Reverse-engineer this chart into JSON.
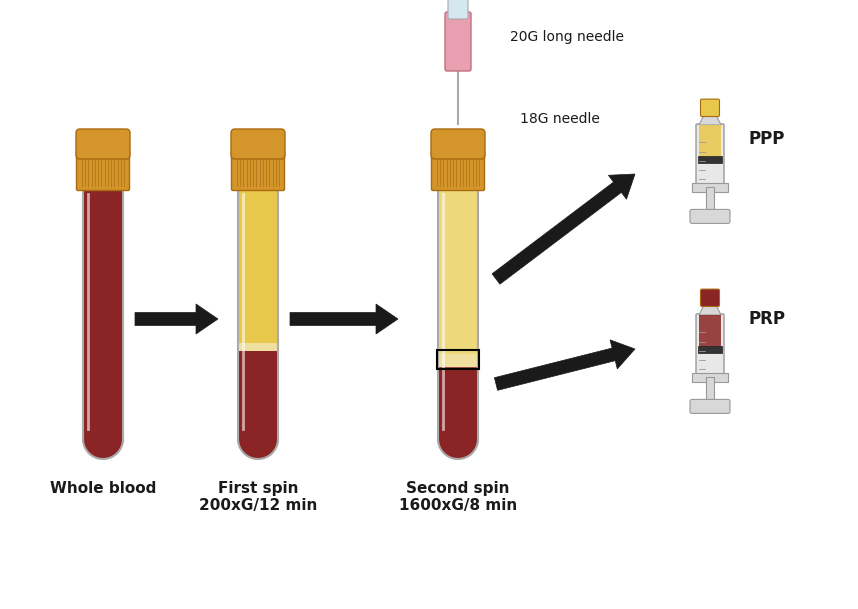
{
  "bg_color": "#ffffff",
  "tube1_label": "Whole blood",
  "tube2_label": "First spin\n200xG/12 min",
  "tube3_label": "Second spin\n1600xG/8 min",
  "ppp_label": "PPP",
  "prp_label": "PRP",
  "needle_label1": "20G long needle",
  "needle_label2": "18G needle",
  "blood_color": "#8B2525",
  "yellow_color": "#E8C84A",
  "yellow_light": "#EDD87A",
  "buffy_color": "#F0E0A0",
  "cap_color": "#D4952A",
  "cap_dark": "#A86A10",
  "tube_outline": "#AAAAAA",
  "arrow_color": "#1A1A1A",
  "text_color": "#1A1A1A",
  "pink_color": "#E8A0B0",
  "pink_dark": "#C07080",
  "needle_yellow": "#D4952A",
  "needle_gray": "#BBBBBB",
  "glass_color": "#F0F0F0",
  "syringe_gray": "#D8D8D8"
}
